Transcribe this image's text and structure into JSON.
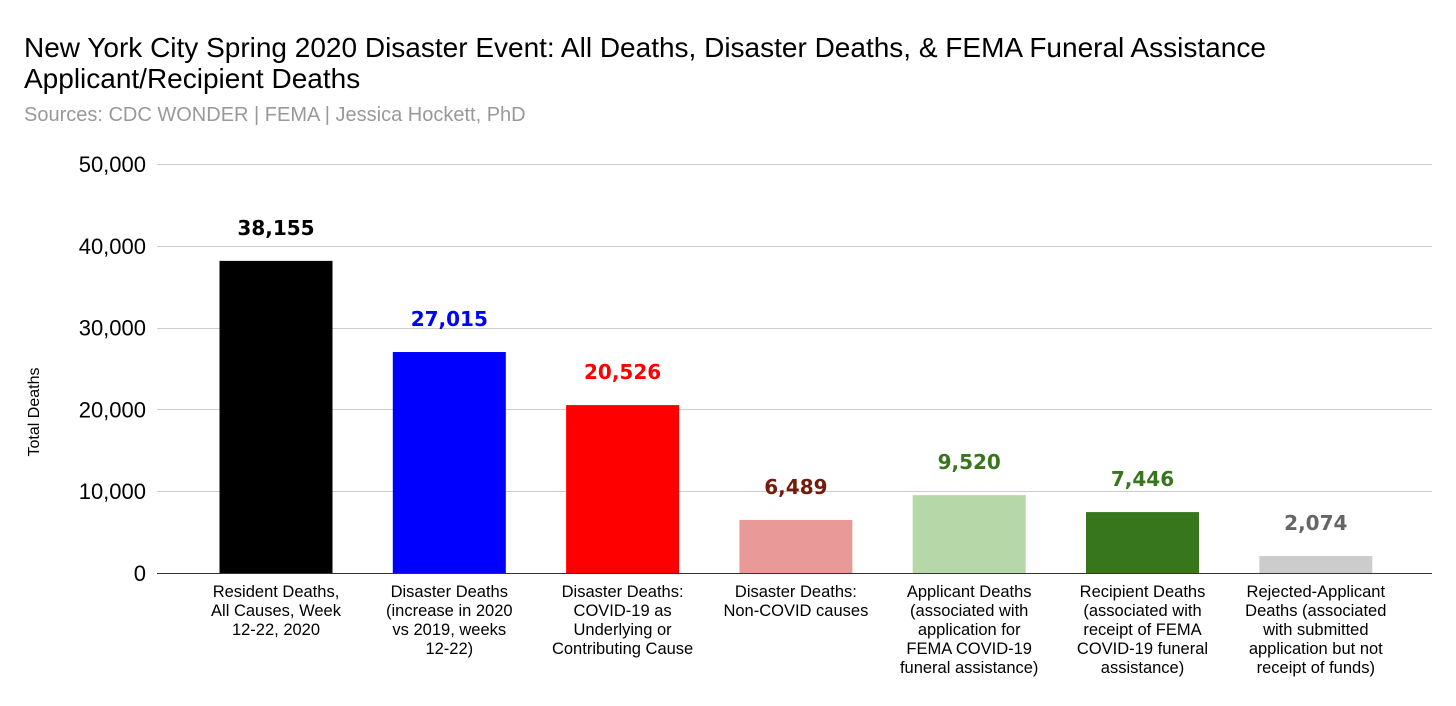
{
  "chart_data": {
    "type": "bar",
    "title": "New York City Spring 2020 Disaster Event: All Deaths, Disaster Deaths, & FEMA Funeral Assistance Applicant/Recipient Deaths",
    "subtitle": "Sources: CDC WONDER | FEMA | Jessica Hockett, PhD",
    "xlabel": "",
    "ylabel": "Total Deaths",
    "ylim": [
      0,
      50000
    ],
    "yticks": [
      0,
      10000,
      20000,
      30000,
      40000,
      50000
    ],
    "ytick_labels": [
      "0",
      "10,000",
      "20,000",
      "30,000",
      "40,000",
      "50,000"
    ],
    "grid": true,
    "categories": [
      [
        "Resident Deaths,",
        "All Causes, Week",
        "12-22, 2020"
      ],
      [
        "Disaster Deaths",
        "(increase in 2020",
        "vs 2019, weeks",
        "12-22)"
      ],
      [
        "Disaster Deaths:",
        "COVID-19 as",
        "Underlying or",
        "Contributing Cause"
      ],
      [
        "Disaster Deaths:",
        "Non-COVID causes"
      ],
      [
        "Applicant Deaths",
        "(associated with",
        "application for",
        "FEMA COVID-19",
        "funeral assistance)"
      ],
      [
        "Recipient Deaths",
        "(associated with",
        "receipt of FEMA",
        "COVID-19 funeral",
        "assistance)"
      ],
      [
        "Rejected-Applicant",
        "Deaths (associated",
        "with submitted",
        "application but not",
        "receipt of funds)"
      ]
    ],
    "values": [
      38155,
      27015,
      20526,
      6489,
      9520,
      7446,
      2074
    ],
    "value_labels": [
      "38,155",
      "27,015",
      "20,526",
      "6,489",
      "9,520",
      "7,446",
      "2,074"
    ],
    "bar_colors": [
      "#000000",
      "#0000ff",
      "#ff0000",
      "#ea9999",
      "#b6d7a8",
      "#38761d",
      "#cccccc"
    ],
    "label_colors": [
      "#000000",
      "#0000ff",
      "#ff0000",
      "#741b0b",
      "#38761d",
      "#38761d",
      "#666666"
    ]
  }
}
